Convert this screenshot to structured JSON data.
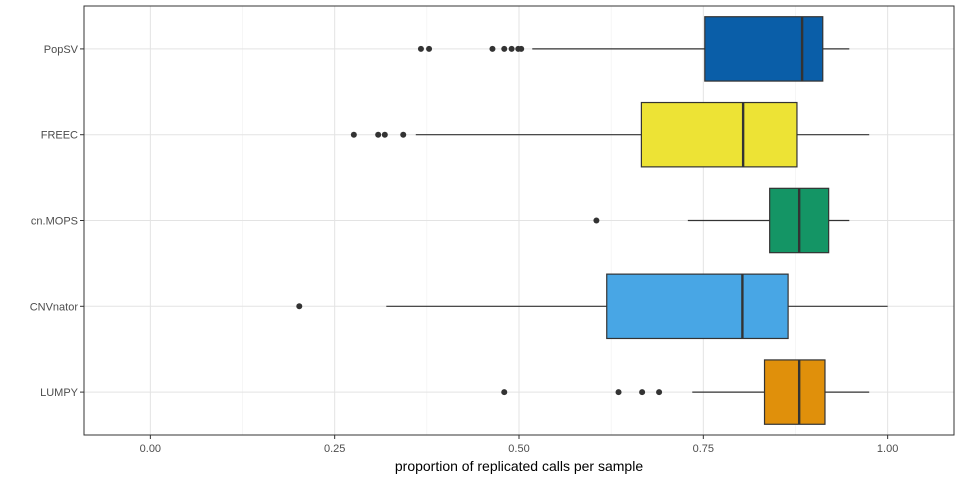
{
  "chart_data": {
    "type": "boxplot",
    "orientation": "horizontal",
    "xlabel": "proportion of replicated calls per sample",
    "ylabel": "",
    "xlim": [
      -0.09,
      1.09
    ],
    "x_ticks": [
      0.0,
      0.25,
      0.5,
      0.75,
      1.0
    ],
    "x_tick_labels": [
      "0.00",
      "0.25",
      "0.50",
      "0.75",
      "1.00"
    ],
    "grid": true,
    "legend": "none",
    "categories": [
      "PopSV",
      "FREEC",
      "cn.MOPS",
      "CNVnator",
      "LUMPY"
    ],
    "series": [
      {
        "category": "PopSV",
        "color": "#0a5ea8",
        "whisker_low": 0.518,
        "q1": 0.752,
        "median": 0.884,
        "q3": 0.912,
        "whisker_high": 0.948,
        "outliers": [
          0.367,
          0.378,
          0.464,
          0.48,
          0.49,
          0.499,
          0.503
        ]
      },
      {
        "category": "FREEC",
        "color": "#ede335",
        "whisker_low": 0.36,
        "q1": 0.666,
        "median": 0.804,
        "q3": 0.877,
        "whisker_high": 0.975,
        "outliers": [
          0.276,
          0.309,
          0.318,
          0.343
        ]
      },
      {
        "category": "cn.MOPS",
        "color": "#149565",
        "whisker_low": 0.729,
        "q1": 0.84,
        "median": 0.88,
        "q3": 0.92,
        "whisker_high": 0.948,
        "outliers": [
          0.605
        ]
      },
      {
        "category": "CNVnator",
        "color": "#48a6e5",
        "whisker_low": 0.32,
        "q1": 0.619,
        "median": 0.803,
        "q3": 0.865,
        "whisker_high": 1.0,
        "outliers": [
          0.202
        ]
      },
      {
        "category": "LUMPY",
        "color": "#e0900b",
        "whisker_low": 0.735,
        "q1": 0.833,
        "median": 0.88,
        "q3": 0.915,
        "whisker_high": 0.975,
        "outliers": [
          0.48,
          0.635,
          0.667,
          0.69
        ]
      }
    ]
  }
}
